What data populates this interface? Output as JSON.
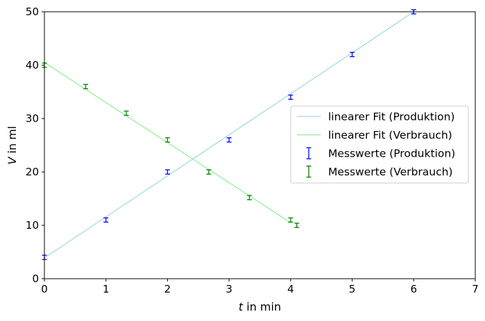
{
  "chart_data": {
    "type": "scatter",
    "title": "",
    "xlabel": {
      "var": "t",
      "rest": " in min"
    },
    "ylabel": {
      "var": "V",
      "rest": " in ml"
    },
    "xlim": [
      0,
      7
    ],
    "ylim": [
      0,
      50
    ],
    "xticks": [
      0,
      1,
      2,
      3,
      4,
      5,
      6,
      7
    ],
    "yticks": [
      0,
      10,
      20,
      30,
      40,
      50
    ],
    "grid": false,
    "legend_position": "center-right",
    "fits": [
      {
        "name": "linearer Fit (Produktion)",
        "color": "#a6d2ea",
        "x": [
          0,
          6
        ],
        "y": [
          3.9,
          50.0
        ]
      },
      {
        "name": "linearer Fit (Verbrauch)",
        "color": "#90ee90",
        "x": [
          0,
          4.0
        ],
        "y": [
          40.5,
          10.5
        ]
      }
    ],
    "series": [
      {
        "name": "Messwerte (Produktion)",
        "color": "#0000ff",
        "x": [
          0,
          1,
          2,
          3,
          4,
          5,
          6
        ],
        "y": [
          4,
          11,
          20,
          26,
          34,
          42,
          50
        ],
        "yerr": 0.4
      },
      {
        "name": "Messwerte (Verbrauch)",
        "color": "#008000",
        "x": [
          0,
          0.67,
          1.33,
          2,
          2.67,
          3.33,
          4,
          4.1
        ],
        "y": [
          40,
          36,
          31,
          26,
          20,
          15.2,
          11,
          10
        ],
        "yerr": 0.4
      }
    ]
  }
}
